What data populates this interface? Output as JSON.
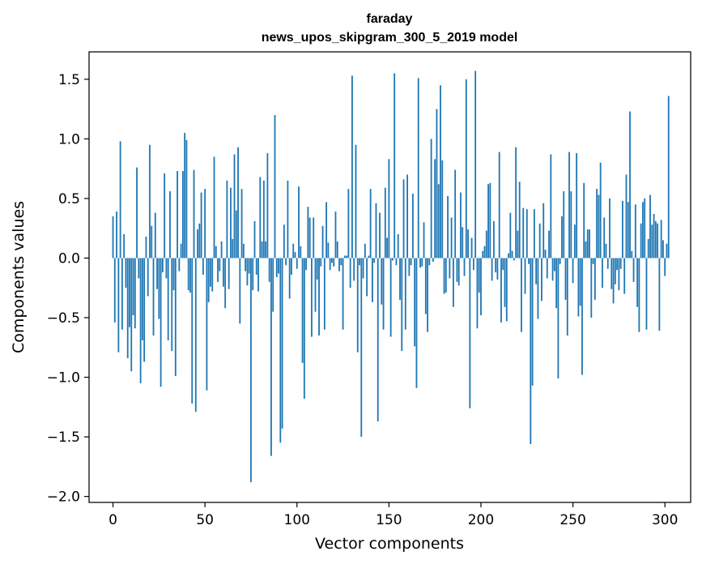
{
  "chart_data": {
    "type": "bar",
    "title": [
      "faraday",
      "news_upos_skipgram_300_5_2019 model"
    ],
    "xlabel": "Vector components",
    "ylabel": "Components values",
    "xlim": [
      -13,
      314
    ],
    "ylim": [
      -2.05,
      1.73
    ],
    "x_ticks": [
      0,
      50,
      100,
      150,
      200,
      250,
      300
    ],
    "x_tick_labels": [
      "0",
      "50",
      "100",
      "150",
      "200",
      "250",
      "300"
    ],
    "y_ticks": [
      -2.0,
      -1.5,
      -1.0,
      -0.5,
      0.0,
      0.5,
      1.0,
      1.5
    ],
    "y_tick_labels": [
      "−2.0",
      "−1.5",
      "−1.0",
      "−0.5",
      "0.0",
      "0.5",
      "1.0",
      "1.5"
    ],
    "grid": false,
    "bar_color": "#1f77b4",
    "values": [
      0.35,
      -0.54,
      0.39,
      -0.79,
      0.98,
      -0.6,
      0.2,
      -0.25,
      -0.84,
      -0.58,
      -0.95,
      -0.48,
      -0.59,
      0.76,
      -0.17,
      -1.05,
      -0.69,
      -0.87,
      0.18,
      -0.32,
      0.95,
      0.27,
      -0.65,
      0.38,
      -0.26,
      -0.51,
      -1.08,
      -0.12,
      0.71,
      -0.17,
      -0.69,
      0.56,
      -0.78,
      -0.27,
      -0.99,
      0.73,
      -0.11,
      0.12,
      0.73,
      1.05,
      0.99,
      -0.27,
      -0.29,
      -1.22,
      0.74,
      -1.29,
      0.24,
      0.29,
      0.55,
      -0.14,
      0.58,
      -1.11,
      -0.37,
      -0.24,
      -0.28,
      0.85,
      0.1,
      -0.2,
      -0.11,
      0.14,
      -0.24,
      -0.42,
      0.65,
      -0.26,
      0.59,
      0.16,
      0.87,
      0.4,
      0.93,
      -0.55,
      0.58,
      0.12,
      -0.11,
      -0.23,
      -0.13,
      -1.88,
      -0.27,
      0.31,
      -0.14,
      -0.28,
      0.68,
      0.14,
      0.65,
      0.14,
      0.88,
      -0.2,
      -1.66,
      -0.45,
      1.2,
      -0.16,
      -0.13,
      -1.55,
      -1.43,
      0.28,
      -0.06,
      0.65,
      -0.34,
      -0.14,
      0.12,
      0.05,
      -0.09,
      0.6,
      0.1,
      -0.88,
      -1.18,
      -0.1,
      0.43,
      0.34,
      -0.66,
      0.34,
      -0.45,
      -0.18,
      -0.65,
      -0.07,
      0.27,
      -0.6,
      0.47,
      0.13,
      -0.1,
      -0.04,
      -0.07,
      0.39,
      0.14,
      -0.11,
      -0.06,
      -0.6,
      0.02,
      0.02,
      0.58,
      -0.25,
      1.53,
      -0.19,
      0.95,
      -0.79,
      -0.06,
      -1.5,
      -0.17,
      0.12,
      -0.32,
      0.02,
      0.58,
      -0.37,
      -0.04,
      0.46,
      -1.37,
      0.38,
      -0.39,
      -0.6,
      0.59,
      0.17,
      0.83,
      -0.66,
      -0.02,
      1.55,
      -0.06,
      0.2,
      -0.35,
      -0.78,
      0.66,
      -0.6,
      0.7,
      -0.15,
      -0.06,
      0.54,
      -0.74,
      -1.09,
      1.51,
      -0.08,
      -0.07,
      0.3,
      -0.47,
      -0.62,
      -0.06,
      1.0,
      -0.03,
      0.83,
      1.25,
      0.62,
      1.45,
      0.82,
      -0.3,
      -0.29,
      0.52,
      -0.17,
      0.34,
      -0.41,
      0.74,
      -0.2,
      -0.23,
      0.55,
      0.26,
      -0.15,
      1.5,
      0.24,
      -1.26,
      0.17,
      -0.1,
      1.57,
      -0.59,
      -0.29,
      -0.48,
      0.06,
      0.1,
      0.23,
      0.62,
      0.63,
      -0.19,
      0.31,
      -0.12,
      -0.18,
      0.89,
      -0.54,
      -0.1,
      -0.41,
      -0.53,
      0.04,
      0.38,
      0.06,
      -0.02,
      0.93,
      0.23,
      0.64,
      -0.62,
      0.42,
      -0.3,
      0.41,
      -0.05,
      -1.56,
      -1.07,
      0.41,
      -0.22,
      -0.51,
      0.29,
      -0.36,
      0.46,
      0.07,
      -0.17,
      0.23,
      0.87,
      -0.19,
      -0.11,
      -0.42,
      -1.01,
      -0.05,
      0.35,
      0.56,
      -0.35,
      -0.65,
      0.89,
      0.56,
      -0.21,
      0.28,
      0.88,
      -0.49,
      -0.4,
      -0.98,
      0.63,
      0.14,
      0.24,
      0.24,
      -0.5,
      -0.05,
      -0.35,
      0.58,
      0.53,
      0.8,
      -0.25,
      0.34,
      0.12,
      -0.09,
      0.5,
      -0.26,
      -0.38,
      -0.22,
      -0.1,
      -0.27,
      -0.09,
      0.48,
      -0.3,
      0.7,
      0.47,
      1.23,
      0.06,
      -0.2,
      0.45,
      -0.41,
      -0.62,
      0.29,
      0.47,
      0.5,
      -0.6,
      0.16,
      0.53,
      0.28,
      0.37,
      0.31,
      0.29,
      -0.61,
      0.32,
      0.15,
      -0.15,
      0.12,
      1.36
    ]
  }
}
